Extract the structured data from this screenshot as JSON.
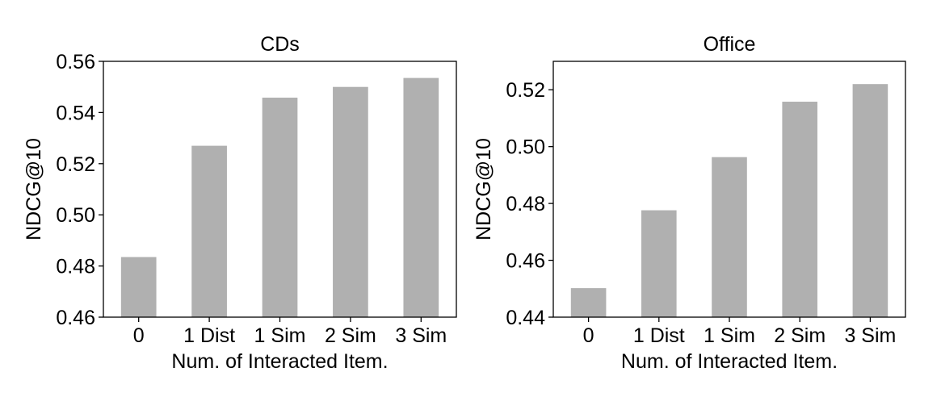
{
  "chart_data": [
    {
      "type": "bar",
      "title": "CDs",
      "xlabel": "Num. of Interacted Item.",
      "ylabel": "NDCG@10",
      "categories": [
        "0",
        "1 Dist",
        "1 Sim",
        "2 Sim",
        "3 Sim"
      ],
      "values": [
        0.4835,
        0.527,
        0.5458,
        0.55,
        0.5535
      ],
      "ylim": [
        0.46,
        0.56
      ],
      "yticks": [
        0.46,
        0.48,
        0.5,
        0.52,
        0.54,
        0.56
      ],
      "ytick_labels": [
        "0.46",
        "0.48",
        "0.50",
        "0.52",
        "0.54",
        "0.56"
      ],
      "bar_color": "#b0b0b0",
      "grid": false
    },
    {
      "type": "bar",
      "title": "Office",
      "xlabel": "Num. of Interacted Item.",
      "ylabel": "NDCG@10",
      "categories": [
        "0",
        "1 Dist",
        "1 Sim",
        "2 Sim",
        "3 Sim"
      ],
      "values": [
        0.4502,
        0.4776,
        0.4963,
        0.5158,
        0.522
      ],
      "ylim": [
        0.44,
        0.53
      ],
      "yticks": [
        0.44,
        0.46,
        0.48,
        0.5,
        0.52
      ],
      "ytick_labels": [
        "0.44",
        "0.46",
        "0.48",
        "0.50",
        "0.52"
      ],
      "bar_color": "#b0b0b0",
      "grid": false
    }
  ]
}
